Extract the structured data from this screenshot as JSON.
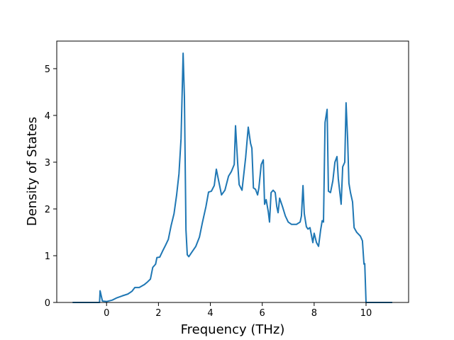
{
  "chart_data": {
    "type": "line",
    "xlabel": "Frequency (THz)",
    "ylabel": "Density of States",
    "xlim": [
      -1.92,
      11.64
    ],
    "ylim": [
      0,
      5.59
    ],
    "xticks": [
      0,
      2,
      4,
      6,
      8,
      10
    ],
    "yticks": [
      0,
      1,
      2,
      3,
      4,
      5
    ],
    "series": [
      {
        "color": "#1f77b4",
        "x": [
          -1.31,
          -0.27,
          -0.25,
          -0.16,
          0,
          0.22,
          0.4,
          0.6,
          0.82,
          0.98,
          1.09,
          1.26,
          1.45,
          1.58,
          1.69,
          1.78,
          1.89,
          1.94,
          2.05,
          2.16,
          2.27,
          2.38,
          2.49,
          2.6,
          2.7,
          2.79,
          2.87,
          2.95,
          3.0,
          3.06,
          3.11,
          3.17,
          3.28,
          3.44,
          3.58,
          3.69,
          3.83,
          3.93,
          4.04,
          4.15,
          4.23,
          4.32,
          4.43,
          4.56,
          4.7,
          4.81,
          4.92,
          4.97,
          5.05,
          5.11,
          5.22,
          5.36,
          5.46,
          5.55,
          5.6,
          5.66,
          5.74,
          5.82,
          5.87,
          5.96,
          6.04,
          6.09,
          6.15,
          6.23,
          6.28,
          6.34,
          6.42,
          6.5,
          6.56,
          6.61,
          6.67,
          6.78,
          6.89,
          7.0,
          7.13,
          7.32,
          7.46,
          7.51,
          7.57,
          7.62,
          7.7,
          7.76,
          7.84,
          7.95,
          8.0,
          8.09,
          8.17,
          8.25,
          8.31,
          8.36,
          8.42,
          8.5,
          8.55,
          8.63,
          8.72,
          8.8,
          8.88,
          8.93,
          9.04,
          9.1,
          9.18,
          9.23,
          9.29,
          9.34,
          9.4,
          9.48,
          9.54,
          9.64,
          9.78,
          9.86,
          9.92,
          9.95,
          10.0,
          11.01
        ],
        "values": [
          0,
          0,
          0.25,
          0.03,
          0.02,
          0.05,
          0.1,
          0.14,
          0.18,
          0.24,
          0.32,
          0.32,
          0.38,
          0.44,
          0.5,
          0.75,
          0.82,
          0.96,
          0.97,
          1.1,
          1.22,
          1.35,
          1.65,
          1.9,
          2.3,
          2.75,
          3.5,
          5.33,
          4.4,
          1.55,
          1.02,
          0.98,
          1.07,
          1.2,
          1.4,
          1.7,
          2.05,
          2.36,
          2.38,
          2.5,
          2.85,
          2.6,
          2.3,
          2.4,
          2.7,
          2.8,
          2.95,
          3.78,
          3.0,
          2.52,
          2.4,
          3.1,
          3.75,
          3.4,
          3.3,
          2.45,
          2.42,
          2.3,
          2.45,
          2.95,
          3.05,
          2.1,
          2.2,
          1.95,
          1.72,
          2.35,
          2.4,
          2.35,
          2.05,
          1.92,
          2.23,
          2.05,
          1.85,
          1.72,
          1.67,
          1.67,
          1.72,
          1.85,
          2.5,
          1.9,
          1.62,
          1.57,
          1.6,
          1.28,
          1.48,
          1.28,
          1.2,
          1.55,
          1.75,
          1.72,
          3.85,
          4.13,
          2.38,
          2.35,
          2.6,
          3.0,
          3.12,
          2.65,
          2.1,
          2.9,
          3.0,
          4.27,
          3.5,
          2.55,
          2.35,
          2.15,
          1.6,
          1.5,
          1.42,
          1.32,
          0.82,
          0.83,
          0.0,
          0
        ]
      }
    ]
  }
}
